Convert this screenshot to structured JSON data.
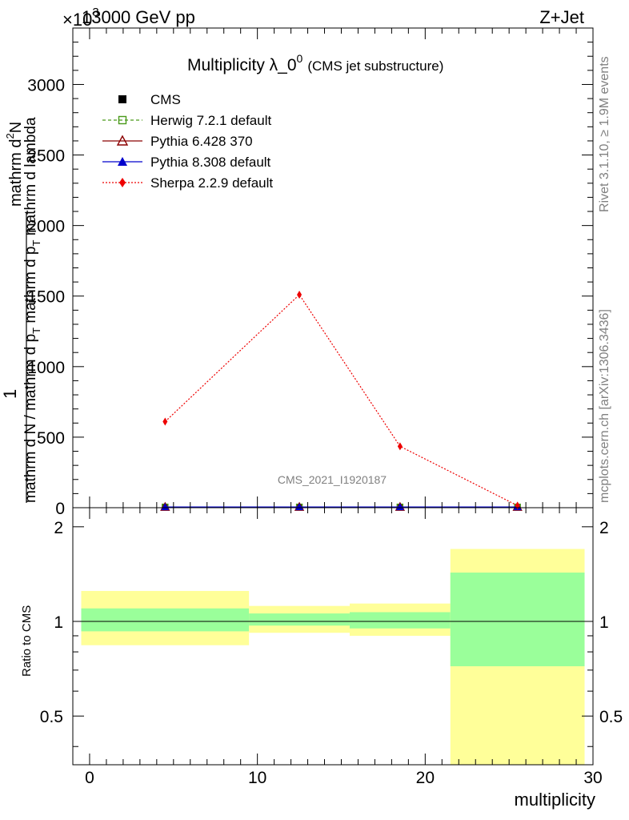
{
  "header": {
    "left": "13000 GeV pp",
    "right": "Z+Jet",
    "multiplier": "×10",
    "multiplier_exp": "3"
  },
  "title": {
    "main": "Multiplicity λ_0",
    "superscript": "0",
    "sub": "(CMS jet substructure)"
  },
  "ylabel": {
    "numerator_prefix": "1",
    "numerator": "mathrm d",
    "numerator_sup": "2",
    "numerator_suffix": "N",
    "denominator_a": "mathrm d N / mathrm d p",
    "denominator_a_sub": "T",
    "denominator_b": " mathrm d p",
    "denominator_b_sub": "T",
    "denominator_c": " mathrm d lambda"
  },
  "side_text": {
    "rivet": "Rivet 3.1.10, ≥ 1.9M events",
    "mcplots": "mcplots.cern.ch [arXiv:1306.3436]"
  },
  "watermark": "CMS_2021_I1920187",
  "ratio_ylabel": "Ratio to CMS",
  "xlabel": "multiplicity",
  "legend": [
    {
      "label": "CMS",
      "color": "#000000",
      "marker": "square-filled"
    },
    {
      "label": "Herwig 7.2.1 default",
      "color": "#4a9a1a",
      "marker": "square-open",
      "dash": "dashed"
    },
    {
      "label": "Pythia 6.428 370",
      "color": "#8b0000",
      "marker": "triangle-open",
      "dash": "solid"
    },
    {
      "label": "Pythia 8.308 default",
      "color": "#0000cc",
      "marker": "triangle-filled",
      "dash": "solid"
    },
    {
      "label": "Sherpa 2.2.9 default",
      "color": "#ee0000",
      "marker": "diamond-filled",
      "dash": "dotted"
    }
  ],
  "chart_data": [
    {
      "type": "line",
      "name": "main",
      "xlim": [
        -1,
        30
      ],
      "ylim": [
        0,
        3400
      ],
      "yticks": [
        0,
        500,
        1000,
        1500,
        2000,
        2500,
        3000
      ],
      "yticklabels": [
        "0",
        "500",
        "1000",
        "1500",
        "2000",
        "2500",
        "3000"
      ],
      "xticks": [
        0,
        10,
        20,
        30
      ],
      "series": [
        {
          "name": "CMS",
          "x": [
            4.5,
            12.5,
            18.5,
            25.5
          ],
          "y": [
            5,
            5,
            5,
            5
          ]
        },
        {
          "name": "Herwig 7.2.1 default",
          "x": [
            4.5,
            12.5,
            18.5,
            25.5
          ],
          "y": [
            5,
            5,
            5,
            5
          ]
        },
        {
          "name": "Pythia 6.428 370",
          "x": [
            4.5,
            12.5,
            18.5,
            25.5
          ],
          "y": [
            5,
            5,
            5,
            5
          ]
        },
        {
          "name": "Pythia 8.308 default",
          "x": [
            4.5,
            12.5,
            18.5,
            25.5
          ],
          "y": [
            5,
            5,
            5,
            5
          ]
        },
        {
          "name": "Sherpa 2.2.9 default",
          "x": [
            4.5,
            12.5,
            18.5,
            25.5
          ],
          "y": [
            610,
            1510,
            435,
            15
          ]
        }
      ]
    },
    {
      "type": "area",
      "name": "ratio",
      "xlim": [
        -1,
        30
      ],
      "ylim": [
        0.35,
        2.3
      ],
      "yticks": [
        0.5,
        1,
        2
      ],
      "yticklabels": [
        "0.5",
        "1",
        "2"
      ],
      "xticks": [
        0,
        10,
        20,
        30
      ],
      "xticklabels": [
        "0",
        "10",
        "20",
        "30"
      ],
      "bins": [
        {
          "x0": -0.5,
          "x1": 9.5,
          "stat_lo": 0.93,
          "stat_hi": 1.1,
          "tot_lo": 0.84,
          "tot_hi": 1.25
        },
        {
          "x0": 9.5,
          "x1": 15.5,
          "stat_lo": 0.97,
          "stat_hi": 1.06,
          "tot_lo": 0.92,
          "tot_hi": 1.12
        },
        {
          "x0": 15.5,
          "x1": 21.5,
          "stat_lo": 0.95,
          "stat_hi": 1.07,
          "tot_lo": 0.9,
          "tot_hi": 1.14
        },
        {
          "x0": 21.5,
          "x1": 29.5,
          "stat_lo": 0.72,
          "stat_hi": 1.43,
          "tot_lo": 0.35,
          "tot_hi": 1.7
        }
      ]
    }
  ],
  "colors": {
    "stat_band": "#9aff9a",
    "total_band": "#ffff99",
    "axis": "#000000"
  }
}
